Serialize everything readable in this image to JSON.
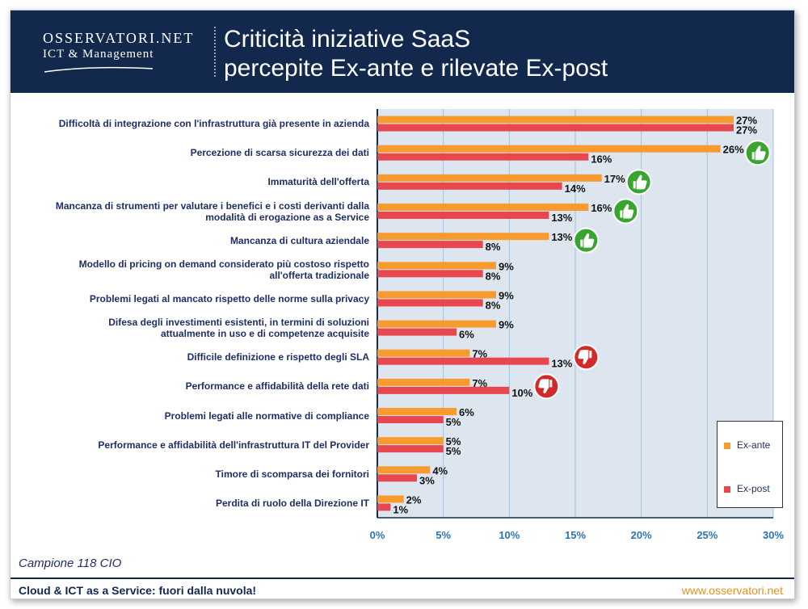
{
  "header": {
    "logo_main": "OSSERVATORI.NET",
    "logo_sub": "ICT & Management",
    "title_line1": "Criticità iniziative SaaS",
    "title_line2": "percepite Ex-ante e rilevate Ex-post"
  },
  "footer": {
    "sample": "Campione 118 CIO",
    "left": "Cloud & ICT as a Service: fuori dalla nuvola!",
    "right": "www.osservatori.net"
  },
  "colors": {
    "header_bg": "#12294d",
    "ex_ante": "#f79b2f",
    "ex_post": "#e8474f",
    "plot_bg": "#dde6ee",
    "grid": "#9fc3de",
    "label": "#1e2f66",
    "thumb_up": "#3aa431",
    "thumb_down": "#d22a2a"
  },
  "chart_data": {
    "type": "bar",
    "orientation": "horizontal",
    "xlim": [
      0,
      30
    ],
    "x_ticks": [
      "0%",
      "5%",
      "10%",
      "15%",
      "20%",
      "25%",
      "30%"
    ],
    "x_tick_values": [
      0,
      5,
      10,
      15,
      20,
      25,
      30
    ],
    "legend_position": "bottom-right",
    "categories": [
      "Difficoltà di integrazione con l'infrastruttura già presente in azienda",
      "Percezione di scarsa sicurezza dei dati",
      "Immaturità dell'offerta",
      "Mancanza di strumenti per valutare i benefici e i costi derivanti dalla modalità di erogazione as a Service",
      "Mancanza di cultura aziendale",
      "Modello di pricing on demand considerato più costoso rispetto all'offerta tradizionale",
      "Problemi legati al mancato rispetto delle norme sulla privacy",
      "Difesa degli investimenti esistenti, in termini di soluzioni attualmente in uso e di competenze acquisite",
      "Difficile definizione e rispetto degli SLA",
      "Performance e affidabilità della rete dati",
      "Problemi legati alle normative di compliance",
      "Performance e affidabilità dell'infrastruttura IT del Provider",
      "Timore di scomparsa dei fornitori",
      "Perdita di ruolo della Direzione IT"
    ],
    "category_lines": [
      [
        "Difficoltà di integrazione con l'infrastruttura già presente in azienda"
      ],
      [
        "Percezione di scarsa sicurezza dei dati"
      ],
      [
        "Immaturità dell'offerta"
      ],
      [
        "Mancanza di strumenti per valutare i benefici e i costi derivanti dalla",
        "modalità di erogazione as a Service"
      ],
      [
        "Mancanza di cultura aziendale"
      ],
      [
        "Modello di pricing on demand considerato più costoso rispetto",
        "all'offerta tradizionale"
      ],
      [
        "Problemi legati al mancato rispetto delle norme sulla privacy"
      ],
      [
        "Difesa degli investimenti esistenti, in termini di soluzioni",
        "attualmente in uso e di competenze acquisite"
      ],
      [
        "Difficile definizione e rispetto degli SLA"
      ],
      [
        "Performance e affidabilità della rete dati"
      ],
      [
        "Problemi legati alle normative di compliance"
      ],
      [
        "Performance e affidabilità dell'infrastruttura IT del Provider"
      ],
      [
        "Timore di scomparsa dei fornitori"
      ],
      [
        "Perdita di ruolo della Direzione IT"
      ]
    ],
    "series": [
      {
        "name": "Ex-ante",
        "color": "#f79b2f",
        "values": [
          27,
          26,
          17,
          16,
          13,
          9,
          9,
          9,
          7,
          7,
          6,
          5,
          4,
          2
        ],
        "labels": [
          "27%",
          "26%",
          "17%",
          "16%",
          "13%",
          "9%",
          "9%",
          "9%",
          "7%",
          "7%",
          "6%",
          "5%",
          "4%",
          "2%"
        ]
      },
      {
        "name": "Ex-post",
        "color": "#e8474f",
        "values": [
          27,
          16,
          14,
          13,
          8,
          8,
          8,
          6,
          13,
          10,
          5,
          5,
          3,
          1
        ],
        "labels": [
          "27%",
          "16%",
          "14%",
          "13%",
          "8%",
          "8%",
          "8%",
          "6%",
          "13%",
          "10%",
          "5%",
          "5%",
          "3%",
          "1%"
        ]
      }
    ],
    "annotations": [
      {
        "category_index": 1,
        "icon": "thumb-up-icon",
        "meaning": "criticità ridotta"
      },
      {
        "category_index": 2,
        "icon": "thumb-up-icon",
        "meaning": "criticità ridotta"
      },
      {
        "category_index": 3,
        "icon": "thumb-up-icon",
        "meaning": "criticità ridotta"
      },
      {
        "category_index": 4,
        "icon": "thumb-up-icon",
        "meaning": "criticità ridotta"
      },
      {
        "category_index": 8,
        "icon": "thumb-down-icon",
        "meaning": "criticità aumentata"
      },
      {
        "category_index": 9,
        "icon": "thumb-down-icon",
        "meaning": "criticità aumentata"
      }
    ]
  }
}
